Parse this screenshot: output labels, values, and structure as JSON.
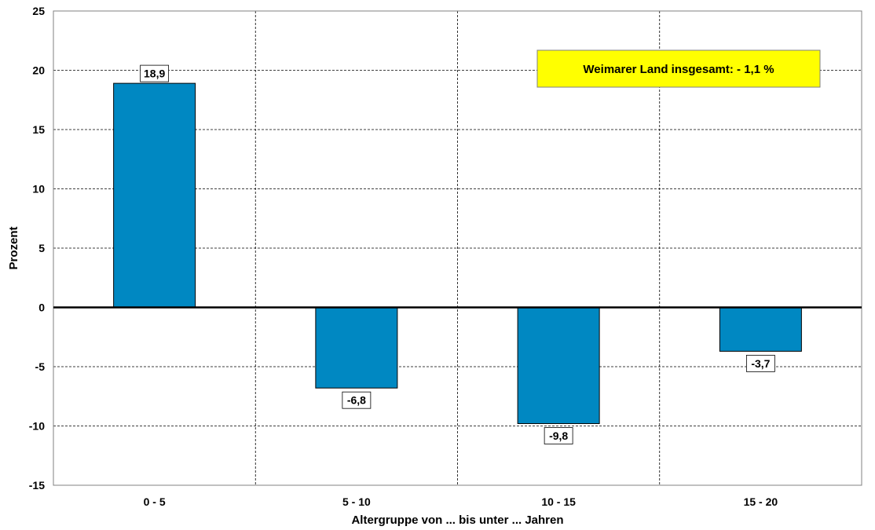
{
  "chart_data": {
    "type": "bar",
    "categories": [
      "0 - 5",
      "5 - 10",
      "10 - 15",
      "15 - 20"
    ],
    "values": [
      18.9,
      -6.8,
      -9.8,
      -3.7
    ],
    "value_labels": [
      "18,9",
      "-6,8",
      "-9,8",
      "-3,7"
    ],
    "xlabel": "Altergruppe von ... bis unter ... Jahren",
    "ylabel": "Prozent",
    "ylim": [
      -15,
      25
    ],
    "yticks": [
      25,
      20,
      15,
      10,
      5,
      0,
      -5,
      -10,
      -15
    ],
    "grid": true,
    "bar_color": "#0088C2",
    "annotation": {
      "text": "Weimarer Land insgesamt: - 1,1 %",
      "position": "top-right",
      "background": "#FFFF00"
    }
  }
}
